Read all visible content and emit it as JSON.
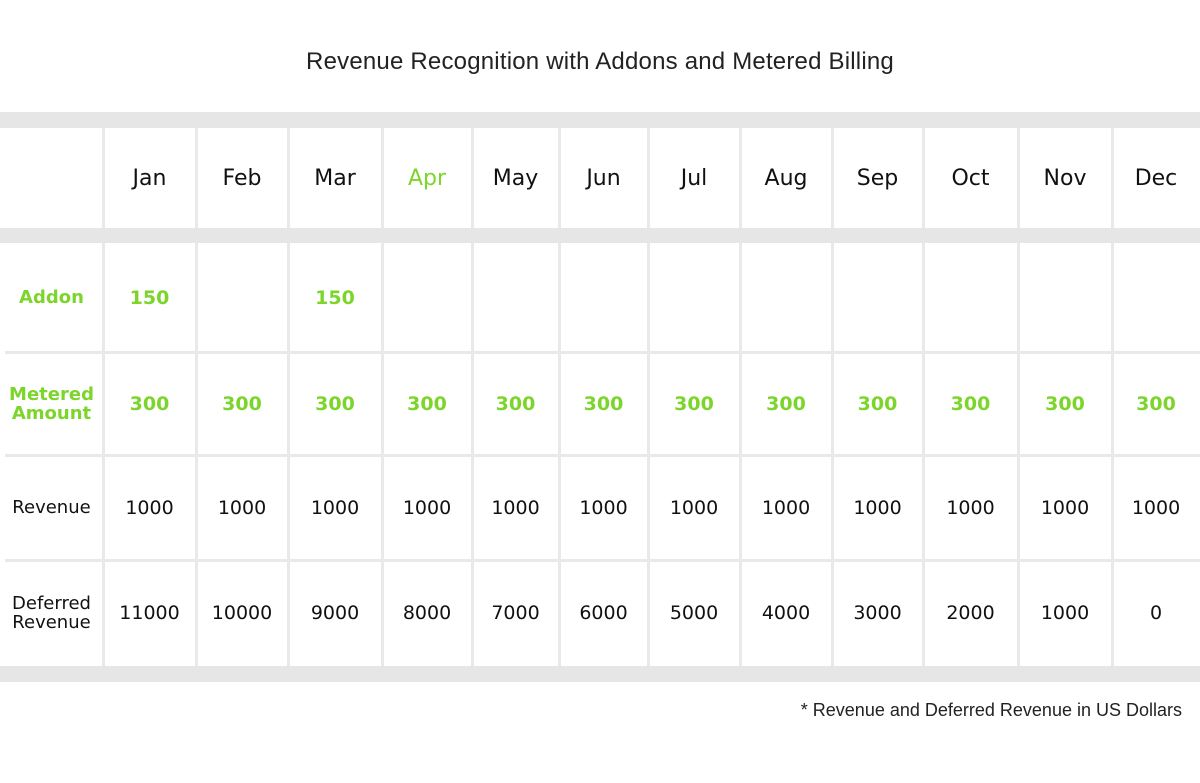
{
  "title": "Revenue Recognition with Addons and Metered Billing",
  "footnote": "* Revenue and Deferred Revenue in US Dollars",
  "colors": {
    "accent": "#7cd52a",
    "text": "#111111",
    "band": "#e6e6e6",
    "grid": "#e9e9e9"
  },
  "chart_data": {
    "type": "table",
    "title": "Revenue Recognition with Addons and Metered Billing",
    "highlighted_column": "Apr",
    "columns": [
      "Jan",
      "Feb",
      "Mar",
      "Apr",
      "May",
      "Jun",
      "Jul",
      "Aug",
      "Sep",
      "Oct",
      "Nov",
      "Dec"
    ],
    "rows": [
      {
        "label": "Addon",
        "highlight": true,
        "values": [
          "150",
          "",
          "150",
          "",
          "",
          "",
          "",
          "",
          "",
          "",
          "",
          ""
        ]
      },
      {
        "label": "Metered Amount",
        "highlight": true,
        "values": [
          "300",
          "300",
          "300",
          "300",
          "300",
          "300",
          "300",
          "300",
          "300",
          "300",
          "300",
          "300"
        ]
      },
      {
        "label": "Revenue",
        "highlight": false,
        "values": [
          "1000",
          "1000",
          "1000",
          "1000",
          "1000",
          "1000",
          "1000",
          "1000",
          "1000",
          "1000",
          "1000",
          "1000"
        ]
      },
      {
        "label": "Deferred Revenue",
        "highlight": false,
        "values": [
          "11000",
          "10000",
          "9000",
          "8000",
          "7000",
          "6000",
          "5000",
          "4000",
          "3000",
          "2000",
          "1000",
          "0"
        ]
      }
    ],
    "note": "* Revenue and Deferred Revenue in US Dollars"
  }
}
